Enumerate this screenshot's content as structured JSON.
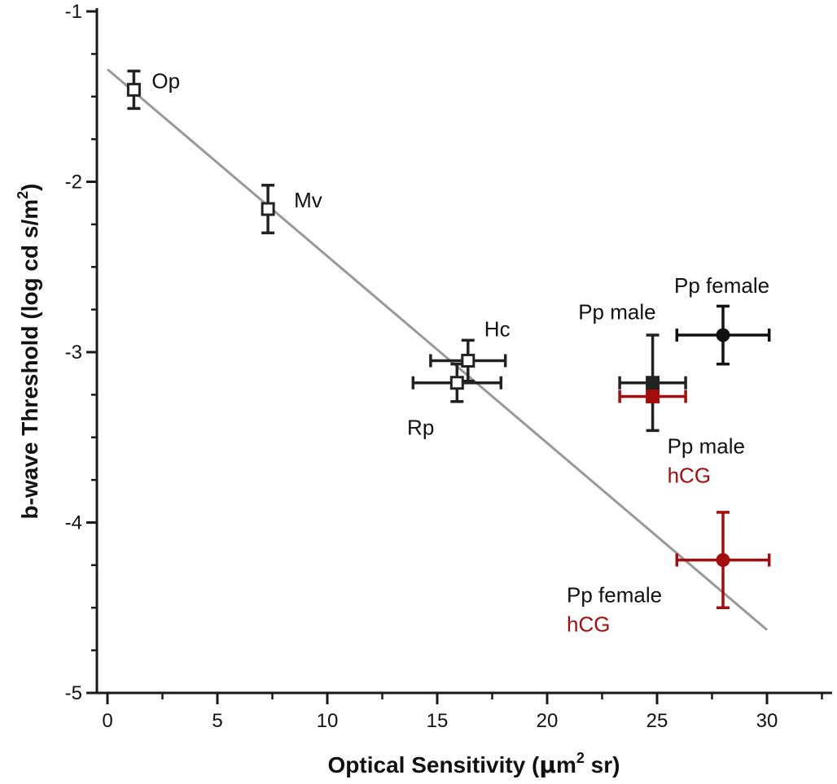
{
  "chart_data": {
    "type": "scatter",
    "title": "",
    "xlabel": "Optical Sensitivity (µm² sr)",
    "xlabel_parts": {
      "base": "Optical Sensitivity (",
      "mu": "µ",
      "unit": "m",
      "sup": "2",
      "tail": " sr)"
    },
    "ylabel": "b-wave Threshold (log cd s/m²)",
    "ylabel_parts": {
      "base": "b-wave Threshold (log cd s/m",
      "sup": "2",
      "tail": ")"
    },
    "xlim": [
      -0.5,
      33
    ],
    "ylim": [
      -5,
      -1
    ],
    "x_ticks": [
      0,
      5,
      10,
      15,
      20,
      25,
      30
    ],
    "x_tick_labels": [
      "0",
      "5",
      "10",
      "15",
      "20",
      "25",
      "30"
    ],
    "y_ticks": [
      -1,
      -2,
      -3,
      -4,
      -5
    ],
    "y_tick_labels": [
      "-1",
      "-2",
      "-3",
      "-4",
      "-5"
    ],
    "regression_line": {
      "x": [
        0,
        30
      ],
      "y": [
        -1.34,
        -4.63
      ],
      "color": "#999999"
    },
    "points": [
      {
        "id": "op",
        "label": "Op",
        "x": 1.2,
        "y": -1.46,
        "xerr": 0,
        "yerr": 0.11,
        "marker": "open-square",
        "color": "#222222"
      },
      {
        "id": "mv",
        "label": "Mv",
        "x": 7.3,
        "y": -2.16,
        "xerr": 0,
        "yerr": 0.14,
        "marker": "open-square",
        "color": "#222222"
      },
      {
        "id": "hc",
        "label": "Hc",
        "x": 16.4,
        "y": -3.05,
        "xerr": 1.7,
        "yerr": 0.12,
        "marker": "open-square",
        "color": "#222222"
      },
      {
        "id": "rp",
        "label": "Rp",
        "x": 15.9,
        "y": -3.18,
        "xerr": 2.0,
        "yerr": 0.11,
        "marker": "open-square",
        "color": "#222222"
      },
      {
        "id": "pp-male",
        "label": "Pp male",
        "x": 24.8,
        "y": -3.18,
        "xerr": 1.5,
        "yerr": 0.28,
        "marker": "filled-square",
        "color": "#222222"
      },
      {
        "id": "pp-male-hcg",
        "label": "Pp male",
        "sublabel": "hCG",
        "x": 24.8,
        "y": -3.26,
        "xerr": 1.5,
        "yerr": 0,
        "marker": "filled-square",
        "color": "#a30d0d"
      },
      {
        "id": "pp-female",
        "label": "Pp female",
        "x": 28.0,
        "y": -2.9,
        "xerr": 2.1,
        "yerr": 0.17,
        "marker": "filled-circle",
        "color": "#111111"
      },
      {
        "id": "pp-female-hcg",
        "label": "Pp female",
        "sublabel": "hCG",
        "x": 28.0,
        "y": -4.22,
        "xerr": 2.1,
        "yerr": 0.28,
        "marker": "filled-circle",
        "color": "#a30d0d"
      }
    ],
    "label_text_color": "#111111",
    "hcg_text_color": "#a30d0d",
    "grid": false,
    "legend": "none"
  }
}
